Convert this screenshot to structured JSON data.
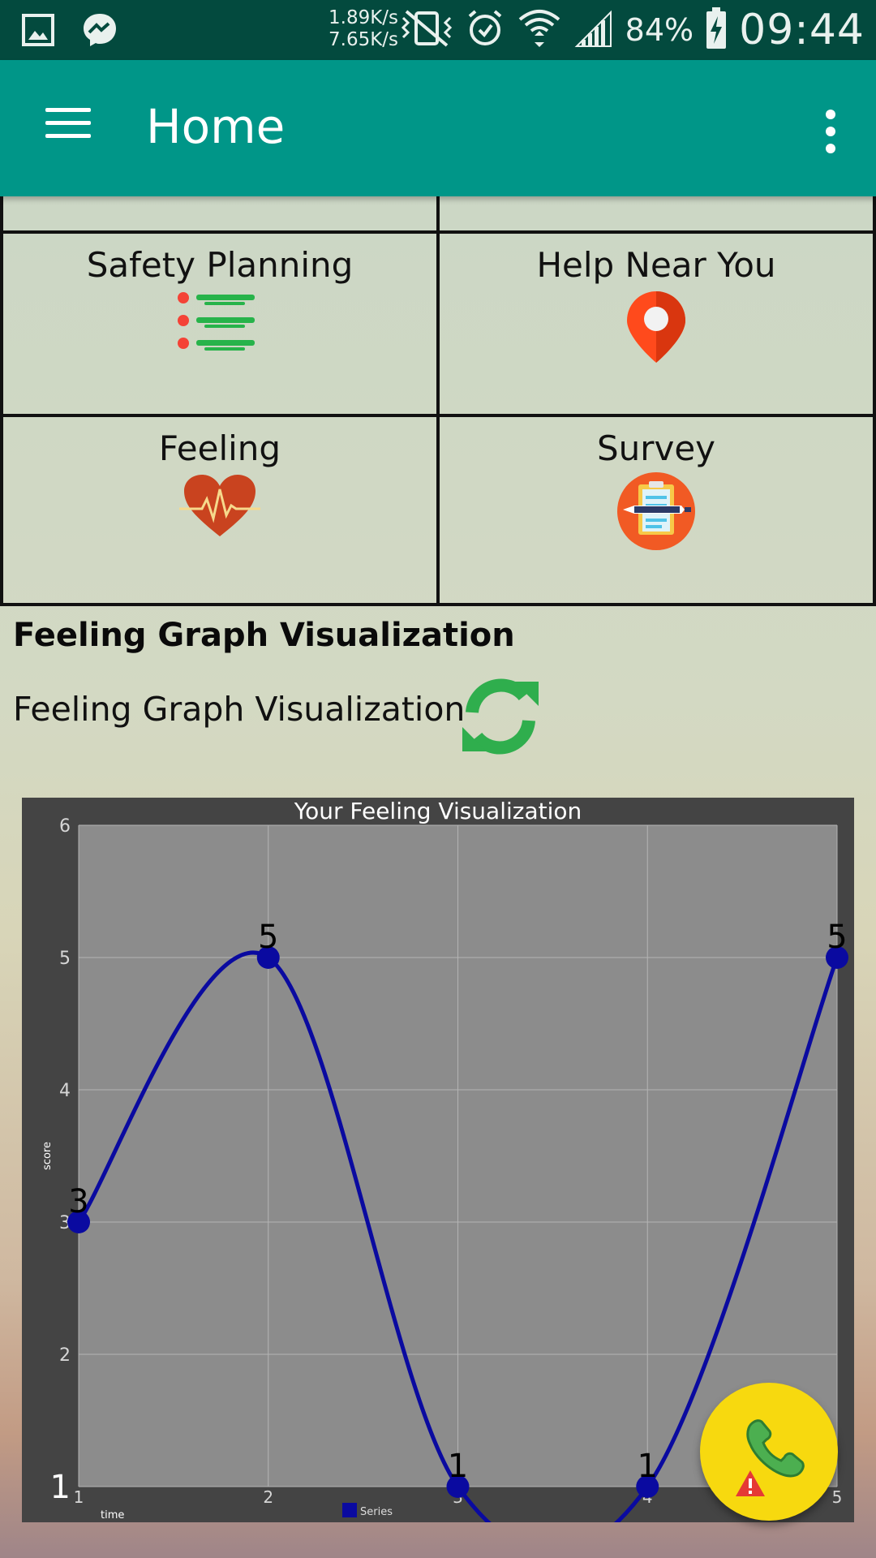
{
  "status_bar": {
    "net_up": "1.89K/s",
    "net_down": "7.65K/s",
    "battery": "84%",
    "time": "09:44",
    "icons": [
      "gallery-icon",
      "messenger-icon",
      "vibrate-off-icon",
      "alarm-icon",
      "wifi-icon",
      "signal-icon",
      "battery-charging-icon"
    ]
  },
  "appbar": {
    "title": "Home",
    "menu_icon": "hamburger-menu-icon",
    "overflow_icon": "more-vert-icon"
  },
  "tiles": [
    {
      "label": "Safety Planning",
      "icon": "checklist-icon"
    },
    {
      "label": "Help Near You",
      "icon": "location-pin-icon"
    },
    {
      "label": "Feeling",
      "icon": "heartbeat-icon"
    },
    {
      "label": "Survey",
      "icon": "clipboard-icon"
    }
  ],
  "section": {
    "heading": "Feeling Graph Visualization",
    "subtitle": "Feeling Graph Visualization",
    "refresh_icon": "refresh-icon"
  },
  "chart_data": {
    "type": "line",
    "title": "Your Feeling Visualization",
    "xlabel": "time",
    "ylabel": "score",
    "x": [
      1,
      2,
      3,
      4,
      5
    ],
    "ylim": [
      1,
      6
    ],
    "y_ticks": [
      "1",
      "2",
      "3",
      "4",
      "5",
      "6"
    ],
    "x_ticks": [
      "1",
      "2",
      "3",
      "4",
      "5"
    ],
    "series": [
      {
        "name": "Series",
        "values": [
          3,
          5,
          1,
          1,
          5
        ],
        "labels": [
          "3",
          "5",
          "1",
          "1",
          "5"
        ]
      }
    ],
    "grid": true,
    "legend": "bottom-center",
    "colors": {
      "line": "#0a0aa0",
      "plot_bg": "#8c8c8c",
      "frame_bg": "#444444"
    }
  },
  "fab": {
    "icon": "emergency-call-icon",
    "colors": {
      "bg": "#f7d90f"
    }
  }
}
